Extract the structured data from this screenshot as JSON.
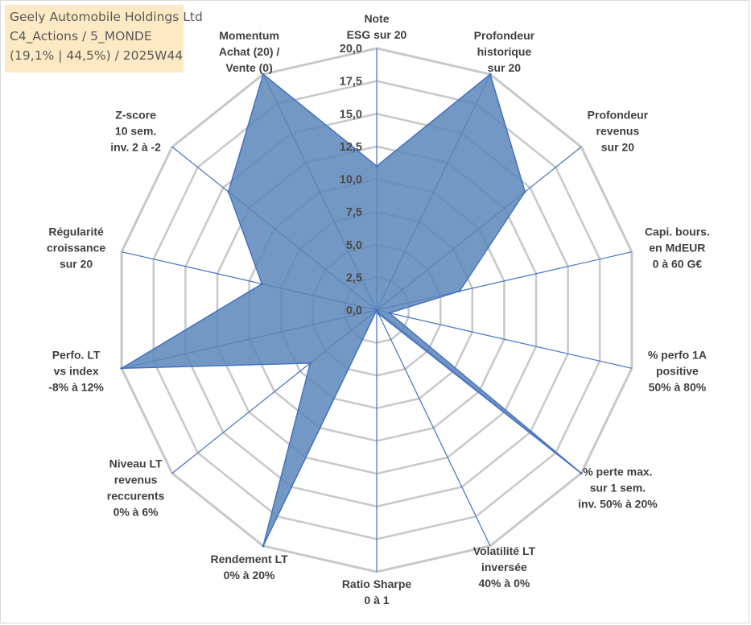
{
  "title": {
    "line1": "Geely Automobile Holdings Ltd",
    "line2": "C4_Actions / 5_MONDE",
    "line3": "(19,1% | 44,5%) / 2025W44"
  },
  "colors": {
    "fill": "#5b86b8",
    "series_line": "#4472c4",
    "grid": "#c8c8c8",
    "spoke": "#4472c4",
    "title_bg": "#fde9c4"
  },
  "chart_data": {
    "type": "radar",
    "title": "",
    "rmin": 0,
    "rmax": 20,
    "tick_step": 2.5,
    "tick_labels": [
      "0,0",
      "2,5",
      "5,0",
      "7,5",
      "10,0",
      "12,5",
      "15,0",
      "17,5",
      "20,0"
    ],
    "axes": [
      {
        "label": [
          "Note",
          "ESG sur 20"
        ],
        "value": 11.0
      },
      {
        "label": [
          "Profondeur",
          "historique",
          "sur 20"
        ],
        "value": 20.0
      },
      {
        "label": [
          "Profondeur",
          "revenus",
          "sur 20"
        ],
        "value": 14.5
      },
      {
        "label": [
          "Capi. bours.",
          "en MdEUR",
          "0 à 60 G€"
        ],
        "value": 6.5
      },
      {
        "label": [
          "% perfo 1A",
          "positive",
          "50% à 80%"
        ],
        "value": 1.0
      },
      {
        "label": [
          "% perte max.",
          "sur 1 sem.",
          "inv. 50% à 20%"
        ],
        "value": 20.0
      },
      {
        "label": [
          "Volatilité LT",
          "inversée",
          "40% à 0%"
        ],
        "value": 0.3
      },
      {
        "label": [
          "Ratio Sharpe",
          "0 à 1"
        ],
        "value": 0.0
      },
      {
        "label": [
          "Rendement LT",
          "0% à 20%"
        ],
        "value": 20.0
      },
      {
        "label": [
          "Niveau LT",
          "revenus",
          "reccurents",
          "0% à 6%"
        ],
        "value": 6.5
      },
      {
        "label": [
          "Perfo. LT",
          "vs index",
          "-8% à 12%"
        ],
        "value": 20.0
      },
      {
        "label": [
          "Régularité",
          "croissance",
          "sur 20"
        ],
        "value": 9.0
      },
      {
        "label": [
          "Z-score",
          "10 sem.",
          "inv. 2 à -2"
        ],
        "value": 14.5
      },
      {
        "label": [
          "Momentum",
          "Achat (20) /",
          "Vente (0)"
        ],
        "value": 20.0
      }
    ]
  }
}
